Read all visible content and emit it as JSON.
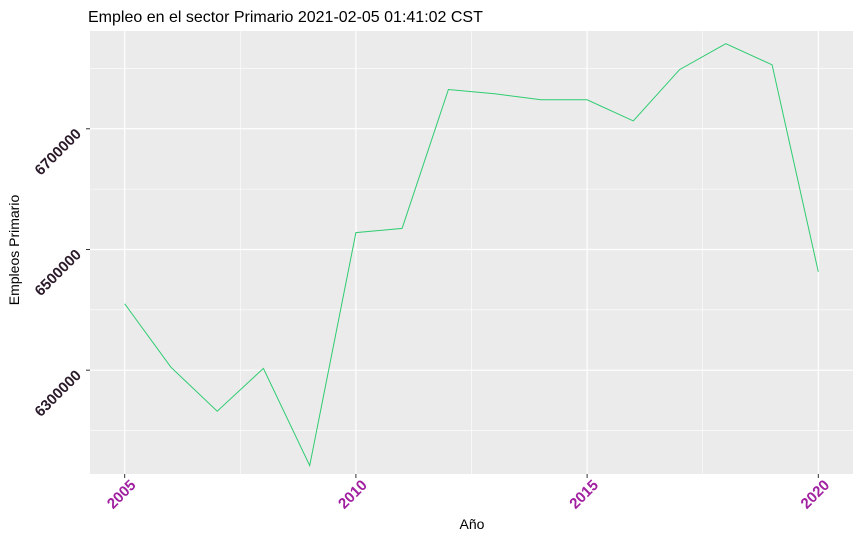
{
  "chart_data": {
    "type": "line",
    "title": "Empleo en el sector Primario 2021-02-05 01:41:02 CST",
    "xlabel": "Año",
    "ylabel": "Empleos Primario",
    "x": [
      2005,
      2006,
      2007,
      2008,
      2009,
      2010,
      2011,
      2012,
      2013,
      2014,
      2015,
      2016,
      2017,
      2018,
      2019,
      2020
    ],
    "series": [
      {
        "values": [
          6410000,
          6305000,
          6232000,
          6303000,
          6142000,
          6528000,
          6535000,
          6765000,
          6758000,
          6748000,
          6748000,
          6713000,
          6798000,
          6841000,
          6806000,
          6463000
        ]
      }
    ],
    "xlim": [
      2004.25,
      2020.75
    ],
    "ylim": [
      6128000,
      6862000
    ],
    "xticks": [
      2005,
      2010,
      2015,
      2020
    ],
    "xtick_labels": [
      "2005",
      "2010",
      "2015",
      "2020"
    ],
    "yticks": [
      6300000,
      6500000,
      6700000
    ],
    "ytick_labels": [
      "6300000",
      "6500000",
      "6700000"
    ],
    "grid": true,
    "colors": {
      "line": "#2ecc71",
      "panel": "#ebebeb",
      "grid": "#ffffff",
      "xtick_text": "#a020a0",
      "ytick_text": "#2a1a2a"
    }
  }
}
